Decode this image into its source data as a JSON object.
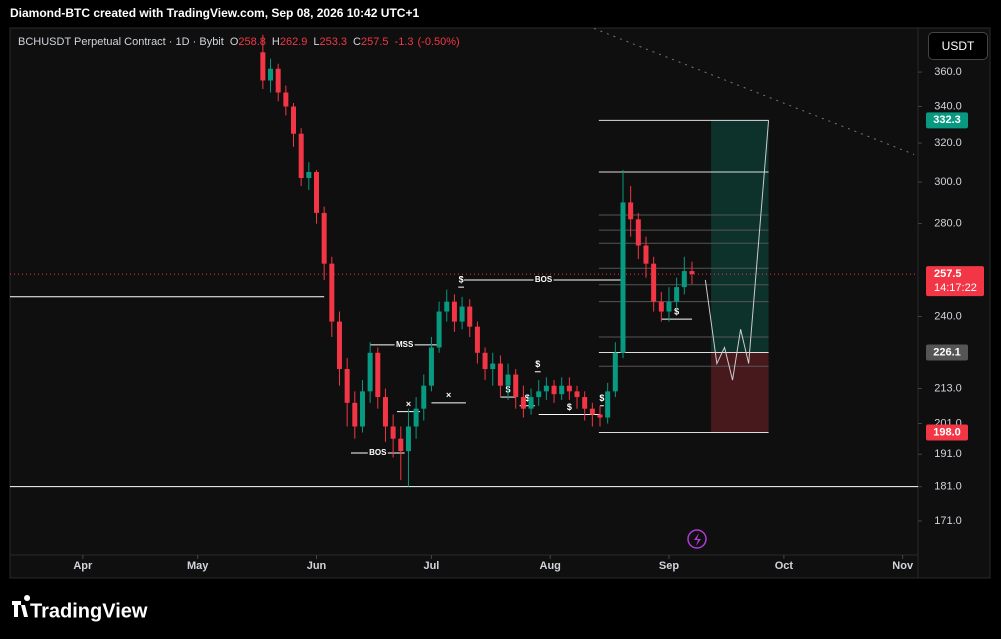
{
  "header": "Diamond-BTC created with TradingView.com, Sep 08, 2026 10:42 UTC+1",
  "watermark": "TradingView",
  "currency_button": "USDT",
  "countdown": "14:17:22",
  "chart_data": {
    "type": "candlestick",
    "legend": {
      "title": "BCHUSDT Perpetual Contract · 1D · Bybit",
      "items": [
        {
          "key": "O",
          "value": 258.8
        },
        {
          "key": "H",
          "value": 262.9
        },
        {
          "key": "L",
          "value": 253.3
        },
        {
          "key": "C",
          "value": 257.5
        }
      ],
      "change": -1.3,
      "change_pct": "(-0.50%)"
    },
    "log_scale": true,
    "up_color": "#089981",
    "down_color": "#f23645",
    "ylim": [
      163.5,
      386
    ],
    "yticks": [
      {
        "value": 360,
        "label": "360.0"
      },
      {
        "value": 340,
        "label": "340.0"
      },
      {
        "value": 320,
        "label": "320.0"
      },
      {
        "value": 300,
        "label": "300.0"
      },
      {
        "value": 280,
        "label": "280.0"
      },
      {
        "value": 240,
        "label": "240.0"
      },
      {
        "value": 213,
        "label": "213.0"
      },
      {
        "value": 201,
        "label": "201.0"
      },
      {
        "value": 191,
        "label": "191.0"
      },
      {
        "value": 181,
        "label": "181.0"
      },
      {
        "value": 171,
        "label": "171.0"
      }
    ],
    "xlim": [
      -19,
      218
    ],
    "xticks": [
      {
        "value": 0,
        "label": "Apr"
      },
      {
        "value": 30,
        "label": "May"
      },
      {
        "value": 61,
        "label": "Jun"
      },
      {
        "value": 91,
        "label": "Jul"
      },
      {
        "value": 122,
        "label": "Aug"
      },
      {
        "value": 153,
        "label": "Sep"
      },
      {
        "value": 183,
        "label": "Oct"
      },
      {
        "value": 214,
        "label": "Nov"
      }
    ],
    "x": [
      47,
      49,
      51,
      53,
      55,
      57,
      59,
      61,
      63,
      65,
      67,
      69,
      71,
      73,
      75,
      77,
      79,
      81,
      83,
      85,
      87,
      89,
      91,
      93,
      95,
      97,
      99,
      101,
      103,
      105,
      107,
      109,
      111,
      113,
      115,
      117,
      119,
      121,
      123,
      125,
      127,
      129,
      131,
      133,
      135,
      137,
      139,
      141,
      143,
      145,
      147,
      149,
      151,
      153,
      155,
      157,
      159
    ],
    "open": [
      372,
      355,
      362,
      348,
      340,
      325,
      302,
      305,
      285,
      262,
      238,
      220,
      208,
      200,
      212,
      226,
      210,
      200,
      196,
      192,
      200,
      206,
      214,
      228,
      242,
      246,
      238,
      244,
      236,
      226,
      220,
      222,
      214,
      218,
      210,
      206,
      210,
      212,
      214,
      211,
      214,
      212,
      210,
      206,
      204,
      203,
      212,
      226,
      290,
      282,
      270,
      262,
      246,
      242,
      246,
      252,
      258.8
    ],
    "high": [
      383,
      368,
      365,
      352,
      342,
      328,
      310,
      306,
      288,
      265,
      242,
      224,
      212,
      216,
      230,
      228,
      213,
      204,
      200,
      206,
      210,
      218,
      232,
      246,
      251,
      249,
      248,
      247,
      238,
      228,
      226,
      225,
      222,
      220,
      214,
      213,
      216,
      217,
      216,
      217,
      217,
      214,
      212,
      208,
      207,
      215,
      230,
      306,
      298,
      285,
      274,
      265,
      250,
      252,
      256,
      265,
      262.9
    ],
    "low": [
      350,
      348,
      343,
      335,
      318,
      298,
      296,
      280,
      255,
      232,
      214,
      200,
      196,
      198,
      208,
      206,
      195,
      190,
      183,
      181,
      196,
      202,
      212,
      226,
      238,
      234,
      235,
      232,
      222,
      216,
      214,
      210,
      209,
      206,
      203,
      204,
      207,
      209,
      208,
      209,
      209,
      206,
      202,
      200,
      200,
      201,
      210,
      224,
      274,
      264,
      256,
      242,
      238,
      238,
      243,
      249,
      253.3
    ],
    "close": [
      355,
      362,
      348,
      340,
      325,
      302,
      305,
      285,
      262,
      238,
      220,
      208,
      200,
      212,
      226,
      210,
      200,
      196,
      192,
      200,
      206,
      214,
      228,
      242,
      246,
      238,
      244,
      236,
      226,
      220,
      222,
      214,
      218,
      210,
      206,
      210,
      212,
      214,
      211,
      214,
      212,
      210,
      206,
      204,
      203,
      212,
      226,
      290,
      282,
      270,
      262,
      246,
      242,
      246,
      252,
      258.8,
      257.5
    ],
    "levels": [
      {
        "price": 248,
        "x0": -19,
        "x1": 63
      },
      {
        "price": 181,
        "x0": -19,
        "x1": 218
      }
    ],
    "structure": [
      {
        "text": "BOS",
        "price": 255,
        "x0": 99.5,
        "x1": 141
      },
      {
        "text": "MSS",
        "price": 229,
        "x0": 75,
        "x1": 93
      },
      {
        "text": "BOS",
        "price": 191.4,
        "x0": 70,
        "x1": 84
      }
    ],
    "markers": [
      {
        "text": "$",
        "price": 252,
        "x0": 98,
        "x1": 99.5
      },
      {
        "text": "$",
        "price": 219,
        "x0": 118,
        "x1": 119.5
      },
      {
        "text": "$",
        "price": 210,
        "x0": 109,
        "x1": 113
      },
      {
        "text": "$",
        "price": 207,
        "x0": 114,
        "x1": 118
      },
      {
        "text": "$",
        "price": 204,
        "x0": 119,
        "x1": 135
      },
      {
        "text": "$",
        "price": 207,
        "x0": 135,
        "x1": 136
      },
      {
        "text": "$",
        "price": 239,
        "x0": 151,
        "x1": 159
      },
      {
        "text": "×",
        "price": 205,
        "x0": 82,
        "x1": 88
      },
      {
        "text": "×",
        "price": 208,
        "x0": 91,
        "x1": 100
      }
    ],
    "fib_lines": {
      "x0": 134.7,
      "x1": 179,
      "solid": [
        332.3,
        305,
        226.1,
        198
      ],
      "faint": [
        284,
        277,
        271,
        260,
        253,
        246,
        232,
        221
      ]
    },
    "position": {
      "x0": 164,
      "x1": 179,
      "target": 332.3,
      "entry": 226.1,
      "stop": {
        "value": 198,
        "label": "198.0"
      }
    },
    "projection": {
      "x": [
        162.5,
        165.5,
        167.5,
        169.6,
        171.7,
        173.8,
        179
      ],
      "y": [
        255,
        222,
        228,
        216,
        235,
        222,
        332.3
      ]
    },
    "trend_line": {
      "x": [
        133.4,
        217
      ],
      "y": [
        387,
        314
      ]
    }
  }
}
